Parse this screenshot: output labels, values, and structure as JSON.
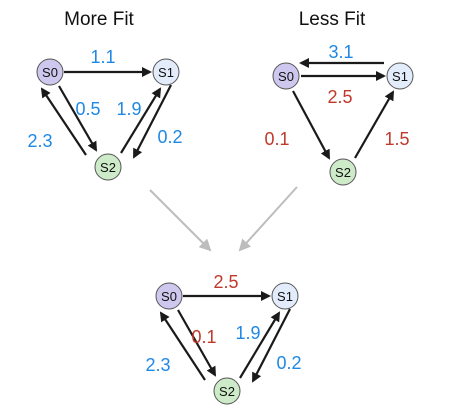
{
  "titles": {
    "left": "More Fit",
    "right": "Less Fit"
  },
  "nodes": {
    "s0": "S0",
    "s1": "S1",
    "s2": "S2"
  },
  "colors": {
    "s0_fill": "#cfc8ee",
    "s1_fill": "#e2ecfb",
    "s2_fill": "#cdebc8",
    "blue": "#1e88e5",
    "red": "#c0392b"
  },
  "graphs": {
    "more_fit": {
      "s0_s1": "1.1",
      "s0_s2": "0.5",
      "s2_s0": "2.3",
      "s2_s1": "1.9",
      "s1_s2": "0.2"
    },
    "less_fit": {
      "s1_s0": "3.1",
      "s0_s1": "2.5",
      "s0_s2": "0.1",
      "s2_s1": "1.5"
    },
    "result": {
      "s0_s1": "2.5",
      "s0_s2": "0.1",
      "s2_s0": "2.3",
      "s2_s1": "1.9",
      "s1_s2": "0.2"
    }
  }
}
